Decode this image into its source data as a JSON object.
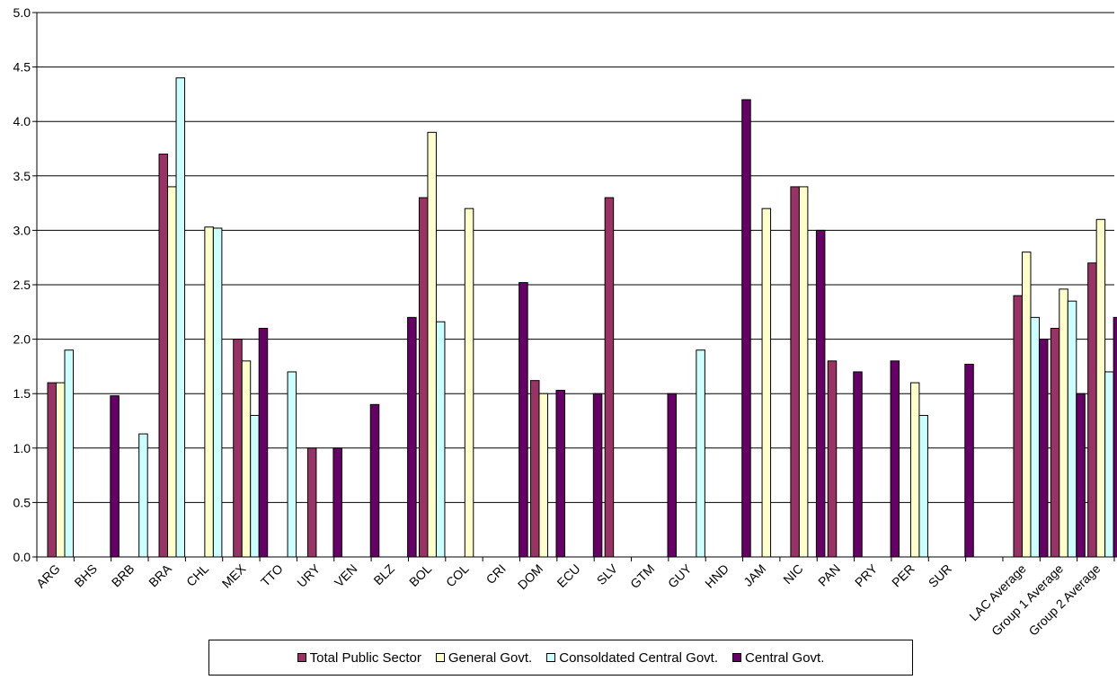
{
  "chart_data": {
    "type": "bar",
    "title": "",
    "xlabel": "",
    "ylabel": "",
    "ylim": [
      0,
      5
    ],
    "yticks": [
      "0.0",
      "0.5",
      "1.0",
      "1.5",
      "2.0",
      "2.5",
      "3.0",
      "3.5",
      "4.0",
      "4.5",
      "5.0"
    ],
    "grid": true,
    "legend_position": "bottom",
    "categories": [
      "ARG",
      "BHS",
      "BRB",
      "BRA",
      "CHL",
      "MEX",
      "TTO",
      "URY",
      "VEN",
      "BLZ",
      "BOL",
      "COL",
      "CRI",
      "DOM",
      "ECU",
      "SLV",
      "GTM",
      "GUY",
      "HND",
      "JAM",
      "NIC",
      "PAN",
      "PRY",
      "PER",
      "SUR",
      "",
      "LAC Average",
      "Group 1 Average",
      "Group 2 Average"
    ],
    "series": [
      {
        "name": "Total Public Sector",
        "color": "#993366",
        "values": [
          1.6,
          null,
          null,
          3.7,
          null,
          2.0,
          null,
          1.0,
          null,
          null,
          3.3,
          null,
          null,
          1.62,
          null,
          3.3,
          null,
          null,
          null,
          null,
          3.4,
          1.8,
          null,
          null,
          null,
          null,
          2.4,
          2.1,
          2.7
        ]
      },
      {
        "name": "General Govt.",
        "color": "#ffffcc",
        "values": [
          1.6,
          null,
          null,
          3.4,
          3.03,
          1.8,
          null,
          null,
          null,
          null,
          3.9,
          3.2,
          null,
          1.5,
          null,
          null,
          null,
          null,
          null,
          3.2,
          3.4,
          null,
          null,
          1.6,
          null,
          null,
          2.8,
          2.46,
          3.1
        ]
      },
      {
        "name": "Consoldated Central Govt.",
        "color": "#ccffff",
        "values": [
          1.9,
          null,
          1.13,
          4.4,
          3.02,
          1.3,
          1.7,
          null,
          null,
          null,
          2.16,
          null,
          null,
          null,
          null,
          null,
          null,
          1.9,
          null,
          null,
          null,
          null,
          null,
          1.3,
          null,
          null,
          2.2,
          2.35,
          1.7
        ]
      },
      {
        "name": "Central Govt.",
        "color": "#660066",
        "values": [
          null,
          1.48,
          null,
          null,
          null,
          2.1,
          null,
          1.0,
          1.4,
          2.2,
          null,
          null,
          2.52,
          1.53,
          1.5,
          null,
          1.5,
          null,
          4.2,
          null,
          3.0,
          1.7,
          1.8,
          null,
          1.77,
          null,
          2.0,
          1.5,
          2.2
        ]
      }
    ]
  }
}
